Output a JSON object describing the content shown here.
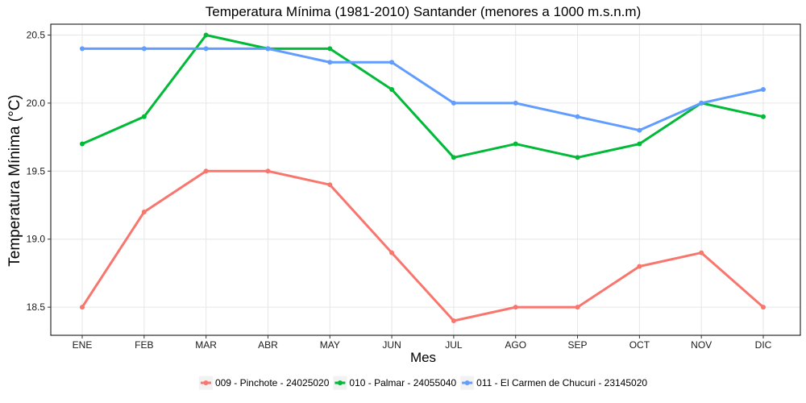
{
  "chart_data": {
    "type": "line",
    "title": "Temperatura Mínima (1981-2010) Santander (menores a 1000 m.s.n.m)",
    "xlabel": "Mes",
    "ylabel": "Temperatura Mínima (°C)",
    "categories": [
      "ENE",
      "FEB",
      "MAR",
      "ABR",
      "MAY",
      "JUN",
      "JUL",
      "AGO",
      "SEP",
      "OCT",
      "NOV",
      "DIC"
    ],
    "ylim": [
      18.4,
      20.5
    ],
    "yticks": [
      "18.5",
      "19.0",
      "19.5",
      "20.0",
      "20.5"
    ],
    "grid": true,
    "legend_position": "bottom",
    "series": [
      {
        "name": "009 - Pinchote - 24025020",
        "color": "#F8766D",
        "values": [
          18.5,
          19.2,
          19.5,
          19.5,
          19.4,
          18.9,
          18.4,
          18.5,
          18.5,
          18.8,
          18.9,
          18.5
        ]
      },
      {
        "name": "010 - Palmar - 24055040",
        "color": "#00BA38",
        "values": [
          19.7,
          19.9,
          20.5,
          20.4,
          20.4,
          20.1,
          19.6,
          19.7,
          19.6,
          19.7,
          20.0,
          19.9
        ]
      },
      {
        "name": "011 - El Carmen de Chucuri - 23145020",
        "color": "#619CFF",
        "values": [
          20.4,
          20.4,
          20.4,
          20.4,
          20.3,
          20.3,
          20.0,
          20.0,
          19.9,
          19.8,
          20.0,
          20.1
        ]
      }
    ]
  }
}
